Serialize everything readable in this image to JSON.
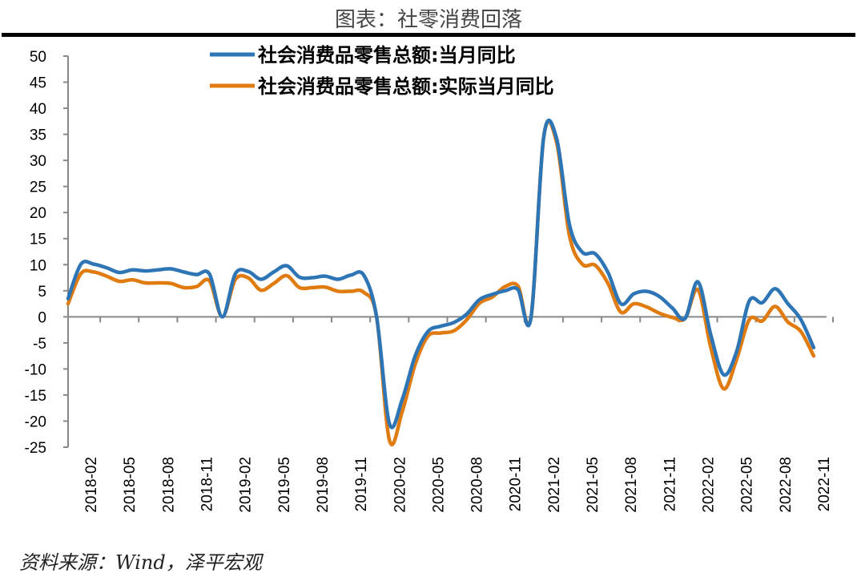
{
  "header": {
    "title": "图表：社零消费回落"
  },
  "footer": {
    "source": "资料来源：Wind，泽平宏观"
  },
  "chart_data": {
    "type": "line",
    "title": "图表：社零消费回落",
    "xlabel": "",
    "ylabel": "",
    "ylim": [
      -25,
      50
    ],
    "yticks": [
      50,
      45,
      40,
      35,
      30,
      25,
      20,
      15,
      10,
      5,
      0,
      -5,
      -10,
      -15,
      -20,
      -25
    ],
    "grid": false,
    "legend_position": "top-center",
    "x": [
      "2018-01",
      "2018-02",
      "2018-03",
      "2018-04",
      "2018-05",
      "2018-06",
      "2018-07",
      "2018-08",
      "2018-09",
      "2018-10",
      "2018-11",
      "2018-12",
      "2019-01",
      "2019-02",
      "2019-03",
      "2019-04",
      "2019-05",
      "2019-06",
      "2019-07",
      "2019-08",
      "2019-09",
      "2019-10",
      "2019-11",
      "2019-12",
      "2020-01",
      "2020-02",
      "2020-03",
      "2020-04",
      "2020-05",
      "2020-06",
      "2020-07",
      "2020-08",
      "2020-09",
      "2020-10",
      "2020-11",
      "2020-12",
      "2021-01",
      "2021-02",
      "2021-03",
      "2021-04",
      "2021-05",
      "2021-06",
      "2021-07",
      "2021-08",
      "2021-09",
      "2021-10",
      "2021-11",
      "2021-12",
      "2022-01",
      "2022-02",
      "2022-03",
      "2022-04",
      "2022-05",
      "2022-06",
      "2022-07",
      "2022-08",
      "2022-09",
      "2022-10",
      "2022-11"
    ],
    "xtick_labels": [
      "2018-02",
      "2018-05",
      "2018-08",
      "2018-11",
      "2019-02",
      "2019-05",
      "2019-08",
      "2019-11",
      "2020-02",
      "2020-05",
      "2020-08",
      "2020-11",
      "2021-02",
      "2021-05",
      "2021-08",
      "2021-11",
      "2022-02",
      "2022-05",
      "2022-08",
      "2022-11"
    ],
    "series": [
      {
        "name": "社会消费品零售总额:当月同比",
        "color": "#2E75B6",
        "values": [
          3.5,
          10.1,
          10.1,
          9.4,
          8.5,
          9.0,
          8.8,
          9.0,
          9.2,
          8.6,
          8.1,
          8.2,
          0,
          8.2,
          8.7,
          7.2,
          8.6,
          9.8,
          7.6,
          7.5,
          7.8,
          7.2,
          8.0,
          8.0,
          0,
          -20.5,
          -15.8,
          -7.5,
          -2.8,
          -1.8,
          -1.1,
          0.5,
          3.3,
          4.3,
          5.0,
          5.2,
          -0.3,
          34.5,
          34.2,
          17.7,
          12.4,
          12.1,
          8.5,
          2.5,
          4.4,
          4.9,
          3.9,
          1.7,
          -0.3,
          6.7,
          -3.5,
          -11.1,
          -6.7,
          3.1,
          2.7,
          5.4,
          2.5,
          -0.5,
          -5.9
        ]
      },
      {
        "name": "社会消费品零售总额:实际当月同比",
        "color": "#E07B10",
        "values": [
          2.5,
          8.3,
          8.6,
          7.8,
          6.8,
          7.1,
          6.5,
          6.5,
          6.4,
          5.6,
          5.8,
          6.9,
          0,
          7.1,
          7.5,
          5.1,
          6.4,
          7.9,
          5.6,
          5.6,
          5.7,
          4.9,
          4.9,
          4.7,
          0,
          -23.7,
          -18.1,
          -9.1,
          -3.7,
          -3.1,
          -2.7,
          -0.6,
          2.6,
          3.8,
          5.8,
          5.9,
          -0.3,
          34.5,
          33.5,
          15.6,
          10.1,
          9.9,
          6.4,
          0.9,
          2.5,
          1.9,
          0.7,
          -0.1,
          -0.3,
          5.2,
          -5.9,
          -13.8,
          -8.2,
          -0.5,
          -0.8,
          2.0,
          -1.0,
          -2.8,
          -7.5
        ]
      }
    ]
  }
}
